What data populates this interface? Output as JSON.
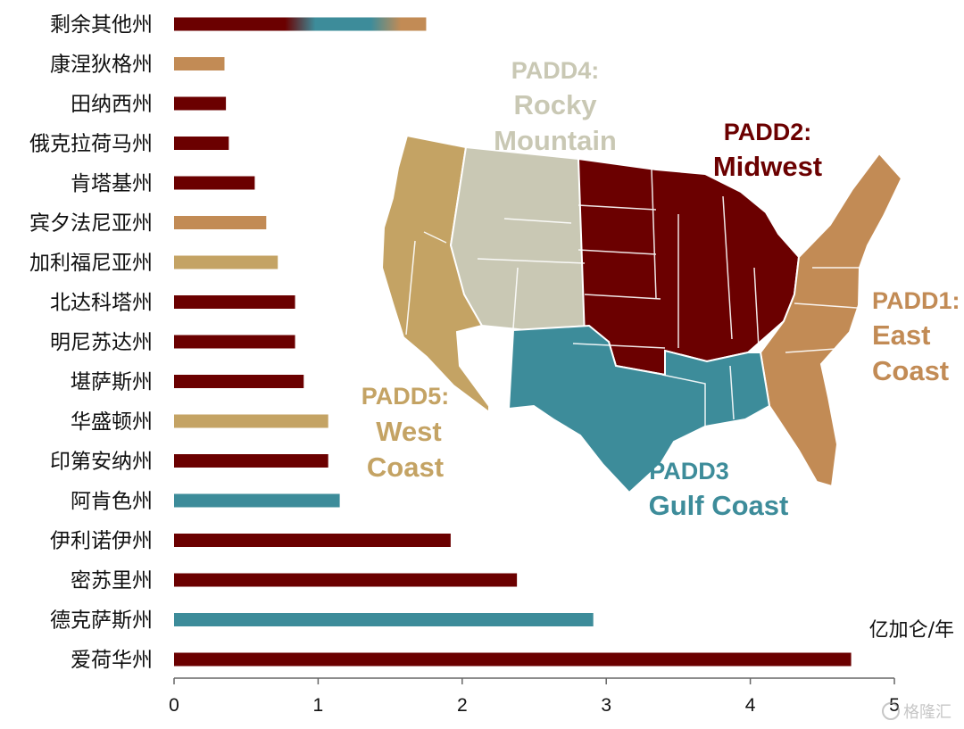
{
  "chart_data": {
    "type": "bar",
    "orientation": "horizontal",
    "title": "",
    "xlabel": "",
    "ylabel": "",
    "unit": "亿加仑/年",
    "xlim": [
      0,
      5
    ],
    "xticks": [
      "0",
      "1",
      "2",
      "3",
      "4",
      "5"
    ],
    "grid": false,
    "categories": [
      "剩余其他州",
      "康涅狄格州",
      "田纳西州",
      "俄克拉荷马州",
      "肯塔基州",
      "宾夕法尼亚州",
      "加利福尼亚州",
      "北达科塔州",
      "明尼苏达州",
      "堪萨斯州",
      "华盛顿州",
      "印第安纳州",
      "阿肯色州",
      "伊利诺伊州",
      "密苏里州",
      "德克萨斯州",
      "爱荷华州"
    ],
    "values": [
      1.75,
      0.35,
      0.36,
      0.38,
      0.56,
      0.64,
      0.72,
      0.84,
      0.84,
      0.9,
      1.07,
      1.07,
      1.15,
      1.92,
      2.38,
      2.91,
      4.7
    ],
    "bar_regions": [
      "mixed",
      "PADD1",
      "PADD2",
      "PADD2",
      "PADD2",
      "PADD1",
      "PADD5",
      "PADD2",
      "PADD2",
      "PADD2",
      "PADD5",
      "PADD2",
      "PADD3",
      "PADD2",
      "PADD2",
      "PADD3",
      "PADD2"
    ],
    "region_colors": {
      "PADD1": "#c28b55",
      "PADD2": "#6b0000",
      "PADD3": "#3d8c9a",
      "PADD4": "#c9c8b4",
      "PADD5": "#c4a364"
    },
    "map_labels": [
      {
        "key": "padd4",
        "lines": [
          "PADD4:",
          "Rocky",
          "Mountain"
        ],
        "color": "#c9c8b4"
      },
      {
        "key": "padd2",
        "lines": [
          "PADD2:",
          "Midwest"
        ],
        "color": "#6b0000"
      },
      {
        "key": "padd1",
        "lines": [
          "PADD1:",
          "East",
          "Coast"
        ],
        "color": "#c28b55"
      },
      {
        "key": "padd5",
        "lines": [
          "PADD5:",
          "West",
          "Coast"
        ],
        "color": "#c4a364"
      },
      {
        "key": "padd3",
        "lines": [
          "PADD3",
          "Gulf Coast"
        ],
        "color": "#3d8c9a"
      }
    ]
  },
  "watermark": "格隆汇"
}
